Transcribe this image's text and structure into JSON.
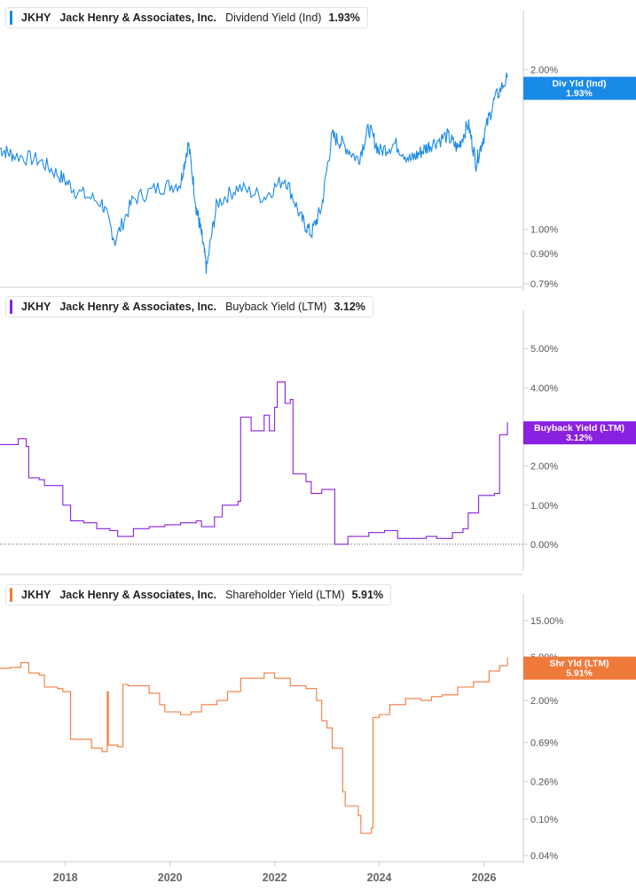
{
  "colors": {
    "dividend": "#1a8ae8",
    "buyback": "#8a20e0",
    "shareholder": "#f07a3c",
    "axis": "#cccccc",
    "tick_text": "#555555",
    "separator": "#d0d0d0"
  },
  "chart_data": [
    {
      "type": "line",
      "panel": "dividend",
      "ticker": "JKHY",
      "company": "Jack Henry & Associates, Inc.",
      "metric": "Dividend Yield (Ind)",
      "value_label": "1.93%",
      "flag_label": "Div Yld (Ind)",
      "flag_value": "1.93%",
      "scale": "log",
      "ylim": [
        0.79,
        2.3
      ],
      "yticks": [
        {
          "v": 0.79,
          "label": "0.79%"
        },
        {
          "v": 0.9,
          "label": "0.90%"
        },
        {
          "v": 1.0,
          "label": "1.00%"
        },
        {
          "v": 2.0,
          "label": "2.00%"
        }
      ],
      "x": [
        2016.75,
        2017.0,
        2017.5,
        2017.9,
        2018.2,
        2018.7,
        2018.95,
        2019.3,
        2019.8,
        2020.2,
        2020.35,
        2020.5,
        2020.6,
        2020.7,
        2020.9,
        2021.3,
        2021.8,
        2022.2,
        2022.5,
        2022.7,
        2022.9,
        2023.1,
        2023.3,
        2023.6,
        2023.8,
        2024.0,
        2024.3,
        2024.6,
        2024.8,
        2025.0,
        2025.3,
        2025.5,
        2025.7,
        2025.85,
        2026.0,
        2026.2,
        2026.45
      ],
      "values": [
        1.42,
        1.38,
        1.35,
        1.26,
        1.18,
        1.12,
        0.95,
        1.14,
        1.2,
        1.22,
        1.45,
        1.1,
        0.98,
        0.84,
        1.12,
        1.2,
        1.15,
        1.25,
        1.05,
        0.98,
        1.1,
        1.5,
        1.45,
        1.35,
        1.55,
        1.4,
        1.45,
        1.35,
        1.4,
        1.45,
        1.5,
        1.42,
        1.58,
        1.33,
        1.5,
        1.75,
        1.93
      ],
      "xaxis_ticks": [
        "2018",
        "2020",
        "2022",
        "2024",
        "2026"
      ]
    },
    {
      "type": "line",
      "panel": "buyback",
      "ticker": "JKHY",
      "company": "Jack Henry & Associates, Inc.",
      "metric": "Buyback Yield (LTM)",
      "value_label": "3.12%",
      "flag_label": "Buyback Yield (LTM)",
      "flag_value": "3.12%",
      "scale": "linear",
      "ylim": [
        -0.5,
        5.3
      ],
      "yticks": [
        {
          "v": 0,
          "label": "0.00%"
        },
        {
          "v": 1,
          "label": "1.00%"
        },
        {
          "v": 2,
          "label": "2.00%"
        },
        {
          "v": 3,
          "label": "3.00%"
        },
        {
          "v": 4,
          "label": "4.00%"
        },
        {
          "v": 5,
          "label": "5.00%"
        }
      ],
      "x": [
        2016.75,
        2017.1,
        2017.25,
        2017.3,
        2017.5,
        2017.6,
        2017.8,
        2017.95,
        2018.1,
        2018.35,
        2018.6,
        2018.85,
        2019.0,
        2019.3,
        2019.6,
        2019.9,
        2020.2,
        2020.5,
        2020.6,
        2020.85,
        2021.0,
        2021.3,
        2021.35,
        2021.55,
        2021.8,
        2021.9,
        2022.0,
        2022.05,
        2022.2,
        2022.3,
        2022.35,
        2022.6,
        2022.7,
        2022.9,
        2023.1,
        2023.15,
        2023.4,
        2023.8,
        2024.1,
        2024.35,
        2024.6,
        2024.9,
        2025.1,
        2025.4,
        2025.6,
        2025.7,
        2025.9,
        2026.2,
        2026.3,
        2026.45
      ],
      "values": [
        2.55,
        2.7,
        2.5,
        1.7,
        1.65,
        1.5,
        1.5,
        1.0,
        0.6,
        0.55,
        0.4,
        0.35,
        0.2,
        0.4,
        0.45,
        0.5,
        0.55,
        0.6,
        0.45,
        0.7,
        1.0,
        1.1,
        3.25,
        2.9,
        3.3,
        2.9,
        3.5,
        4.15,
        3.6,
        3.7,
        1.8,
        1.6,
        1.3,
        1.4,
        1.4,
        0.0,
        0.2,
        0.3,
        0.35,
        0.15,
        0.15,
        0.2,
        0.15,
        0.3,
        0.4,
        0.8,
        1.25,
        1.3,
        2.8,
        3.12
      ],
      "xaxis_ticks": [
        "2018",
        "2020",
        "2022",
        "2024",
        "2026"
      ]
    },
    {
      "type": "line",
      "panel": "shareholder",
      "ticker": "JKHY",
      "company": "Jack Henry & Associates, Inc.",
      "metric": "Shareholder Yield (LTM)",
      "value_label": "5.91%",
      "flag_label": "Shr Yld (LTM)",
      "flag_value": "5.91%",
      "scale": "log",
      "ylim": [
        0.04,
        15
      ],
      "yticks": [
        {
          "v": 0.04,
          "label": "0.04%"
        },
        {
          "v": 0.1,
          "label": "0.10%"
        },
        {
          "v": 0.26,
          "label": "0.26%"
        },
        {
          "v": 0.69,
          "label": "0.69%"
        },
        {
          "v": 2.0,
          "label": "2.00%"
        },
        {
          "v": 6.0,
          "label": "6.00%"
        },
        {
          "v": 15.0,
          "label": "15.00%"
        }
      ],
      "x": [
        2016.75,
        2016.95,
        2017.15,
        2017.3,
        2017.5,
        2017.6,
        2017.85,
        2017.95,
        2018.1,
        2018.5,
        2018.7,
        2018.8,
        2018.82,
        2018.95,
        2019.0,
        2019.1,
        2019.2,
        2019.6,
        2019.8,
        2019.9,
        2020.2,
        2020.4,
        2020.6,
        2020.9,
        2021.1,
        2021.35,
        2021.8,
        2022.0,
        2022.3,
        2022.6,
        2022.8,
        2022.9,
        2023.0,
        2023.1,
        2023.2,
        2023.3,
        2023.35,
        2023.6,
        2023.65,
        2023.85,
        2023.88,
        2024.0,
        2024.2,
        2024.5,
        2024.8,
        2025.0,
        2025.2,
        2025.5,
        2025.8,
        2026.1,
        2026.3,
        2026.45
      ],
      "values": [
        4.5,
        4.6,
        5.2,
        4.0,
        3.8,
        2.8,
        2.7,
        2.5,
        0.75,
        0.6,
        0.55,
        2.5,
        0.65,
        0.65,
        0.62,
        3.0,
        2.9,
        2.4,
        1.8,
        1.5,
        1.4,
        1.5,
        1.8,
        2.0,
        2.5,
        3.5,
        4.0,
        3.5,
        2.9,
        2.7,
        2.0,
        1.2,
        1.0,
        0.6,
        0.6,
        0.2,
        0.14,
        0.11,
        0.07,
        0.08,
        1.3,
        1.4,
        1.8,
        2.1,
        2.0,
        2.2,
        2.3,
        2.8,
        3.2,
        4.2,
        4.8,
        5.91
      ],
      "xaxis_ticks": [
        "2018",
        "2020",
        "2022",
        "2024",
        "2026"
      ]
    }
  ]
}
